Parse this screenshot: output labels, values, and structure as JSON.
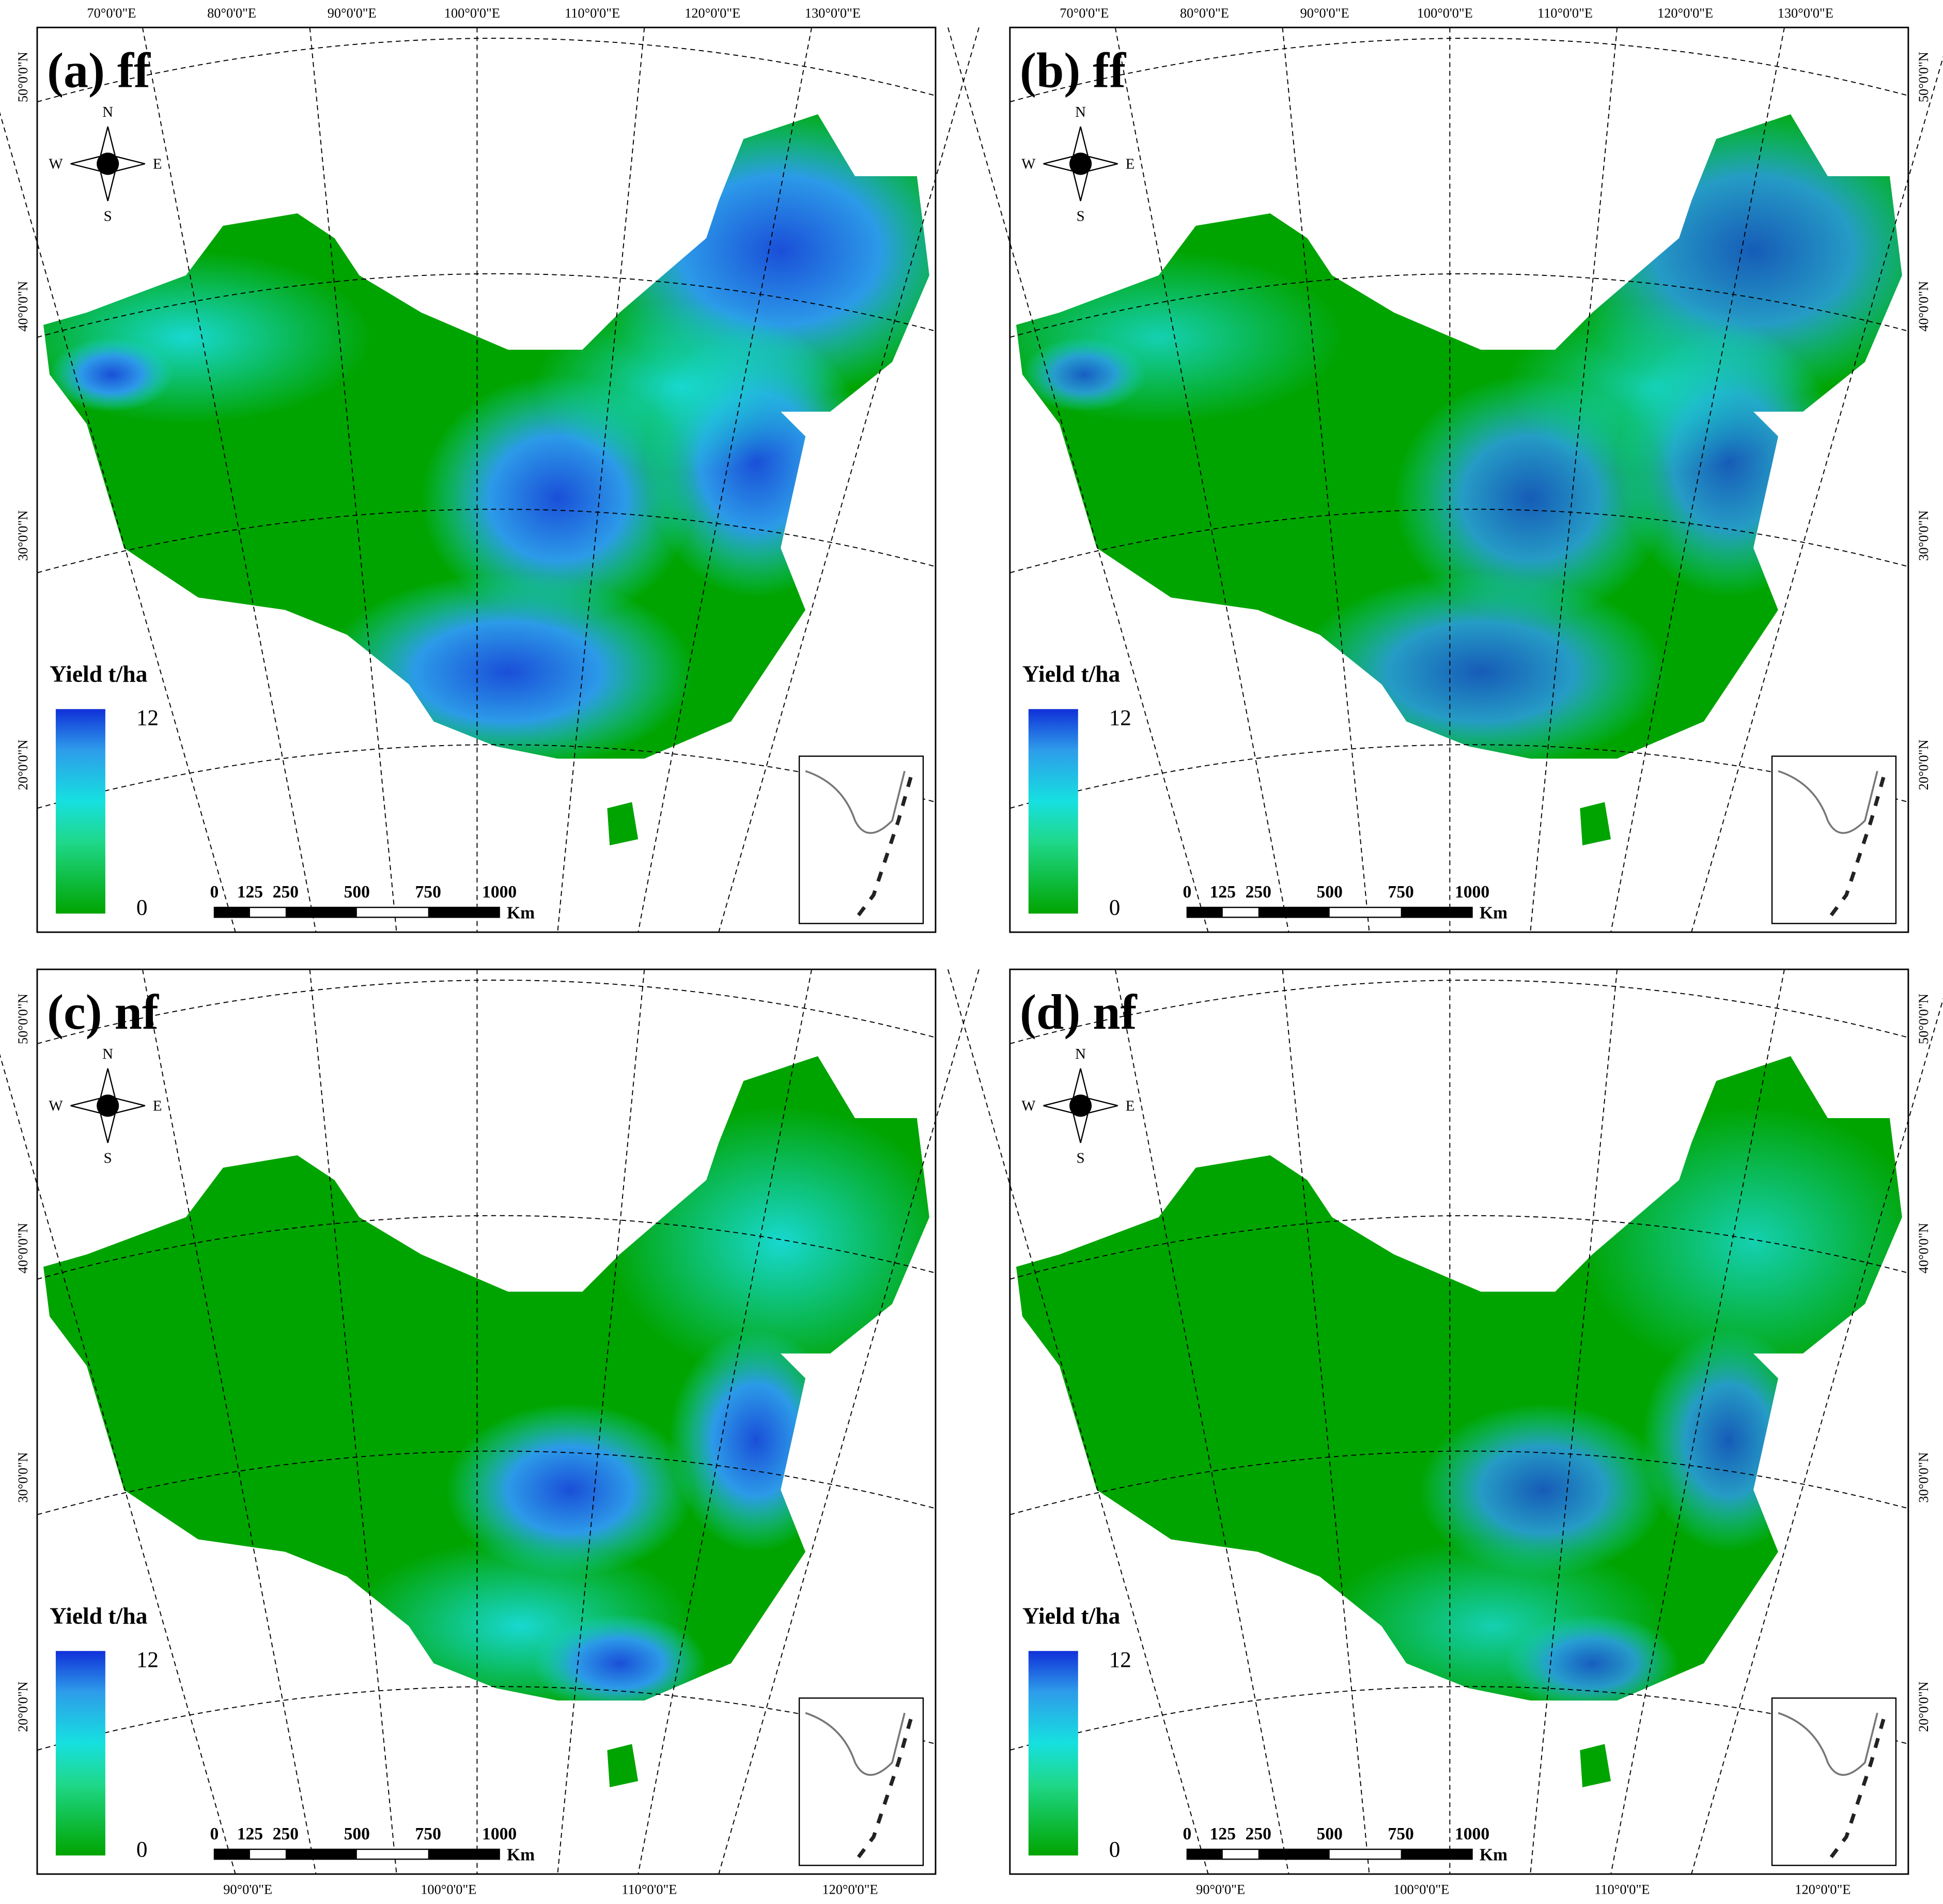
{
  "panels": [
    {
      "label": "(a) ff",
      "legend": {
        "title": "Yield t/ha",
        "max": 12,
        "min": 0
      },
      "scale_bar": {
        "ticks": [
          0,
          125,
          250,
          500,
          750,
          1000
        ],
        "unit": "Km"
      },
      "compass": {
        "n": "N",
        "e": "E",
        "s": "S",
        "w": "W"
      },
      "top_labels": [
        "70°0'0\"E",
        "80°0'0\"E",
        "90°0'0\"E",
        "100°0'0\"E",
        "110°0'0\"E",
        "120°0'0\"E",
        "130°0'0\"E"
      ],
      "left_labels": [
        "50°0'0\"N",
        "40°0'0\"N",
        "30°0'0\"N",
        "20°0'0\"N"
      ]
    },
    {
      "label": "(b) ff",
      "legend": {
        "title": "Yield t/ha",
        "max": 12,
        "min": 0
      },
      "scale_bar": {
        "ticks": [
          0,
          125,
          250,
          500,
          750,
          1000
        ],
        "unit": "Km"
      },
      "compass": {
        "n": "N",
        "e": "E",
        "s": "S",
        "w": "W"
      },
      "top_labels": [
        "70°0'0\"E",
        "80°0'0\"E",
        "90°0'0\"E",
        "100°0'0\"E",
        "110°0'0\"E",
        "120°0'0\"E",
        "130°0'0\"E"
      ],
      "right_labels": [
        "50°0'0\"N",
        "40°0'0\"N",
        "30°0'0\"N",
        "20°0'0\"N"
      ]
    },
    {
      "label": "(c) nf",
      "legend": {
        "title": "Yield t/ha",
        "max": 12,
        "min": 0
      },
      "scale_bar": {
        "ticks": [
          0,
          125,
          250,
          500,
          750,
          1000
        ],
        "unit": "Km"
      },
      "compass": {
        "n": "N",
        "e": "E",
        "s": "S",
        "w": "W"
      },
      "left_labels": [
        "50°0'0\"N",
        "40°0'0\"N",
        "30°0'0\"N",
        "20°0'0\"N"
      ],
      "bottom_labels": [
        "90°0'0\"E",
        "100°0'0\"E",
        "110°0'0\"E",
        "120°0'0\"E"
      ]
    },
    {
      "label": "(d) nf",
      "legend": {
        "title": "Yield t/ha",
        "max": 12,
        "min": 0
      },
      "scale_bar": {
        "ticks": [
          0,
          125,
          250,
          500,
          750,
          1000
        ],
        "unit": "Km"
      },
      "compass": {
        "n": "N",
        "e": "E",
        "s": "S",
        "w": "W"
      },
      "right_labels": [
        "50°0'0\"N",
        "40°0'0\"N",
        "30°0'0\"N",
        "20°0'0\"N"
      ],
      "bottom_labels": [
        "90°0'0\"E",
        "100°0'0\"E",
        "110°0'0\"E",
        "120°0'0\"E"
      ]
    }
  ]
}
